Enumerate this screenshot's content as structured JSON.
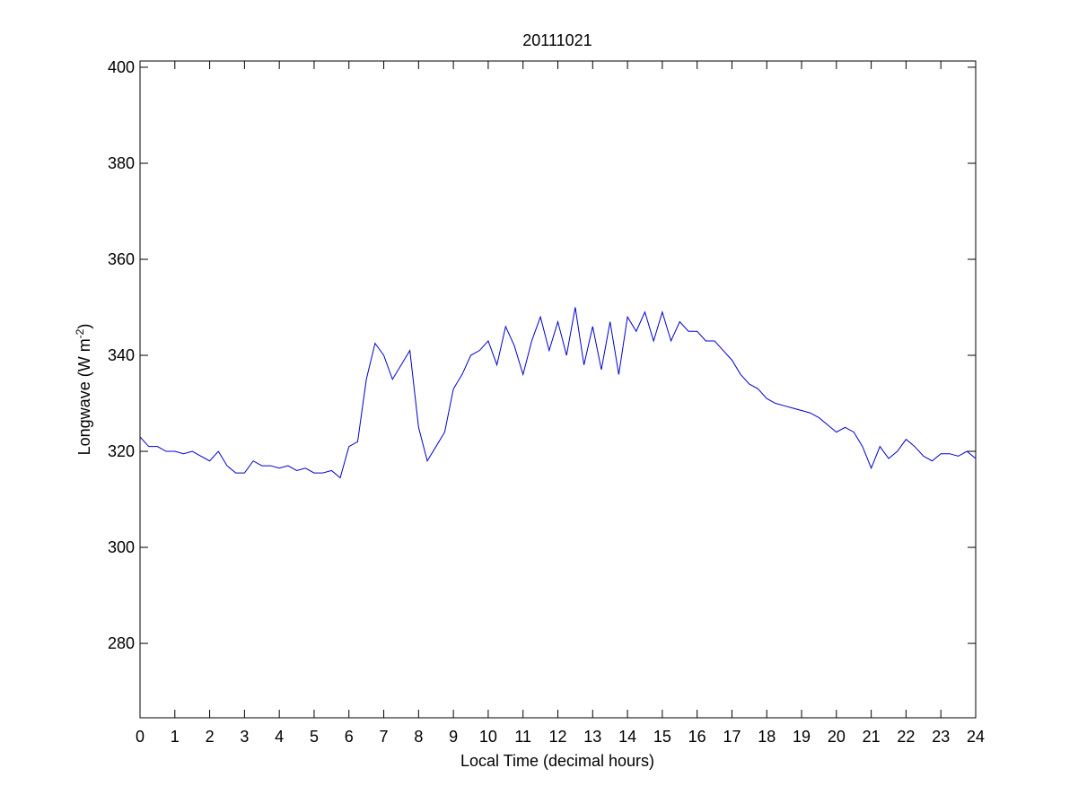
{
  "chart_data": {
    "type": "line",
    "title": "20111021",
    "x_label": "Local Time (decimal hours)",
    "y_label": {
      "text": "Longwave (W m",
      "superscript": "-2",
      "suffix": ")"
    },
    "x": [
      0,
      0.25,
      0.5,
      0.75,
      1,
      1.25,
      1.5,
      1.75,
      2,
      2.25,
      2.5,
      2.75,
      3,
      3.25,
      3.5,
      3.75,
      4,
      4.25,
      4.5,
      4.75,
      5,
      5.25,
      5.5,
      5.75,
      6,
      6.25,
      6.5,
      6.75,
      7,
      7.25,
      7.5,
      7.75,
      8,
      8.25,
      8.5,
      8.75,
      9,
      9.25,
      9.5,
      9.75,
      10,
      10.25,
      10.5,
      10.75,
      11,
      11.25,
      11.5,
      11.75,
      12,
      12.25,
      12.5,
      12.75,
      13,
      13.25,
      13.5,
      13.75,
      14,
      14.25,
      14.5,
      14.75,
      15,
      15.25,
      15.5,
      15.75,
      16,
      16.25,
      16.5,
      16.75,
      17,
      17.25,
      17.5,
      17.75,
      18,
      18.25,
      18.5,
      18.75,
      19,
      19.25,
      19.5,
      19.75,
      20,
      20.25,
      20.5,
      20.75,
      21,
      21.25,
      21.5,
      21.75,
      22,
      22.25,
      22.5,
      22.75,
      23,
      23.25,
      23.5,
      23.75,
      24
    ],
    "series": [
      {
        "name": "Longwave",
        "color": "#0000cc",
        "values": [
          323,
          321,
          321,
          320,
          320,
          319.5,
          320,
          319,
          318,
          320,
          317,
          315.5,
          315.5,
          318,
          317,
          317,
          316.5,
          317,
          316,
          316.5,
          315.5,
          315.5,
          316,
          314.5,
          321,
          322,
          335,
          342.5,
          340,
          335,
          338,
          341,
          325,
          318,
          321,
          324,
          333,
          336,
          340,
          341,
          343,
          338,
          346,
          342,
          336,
          343,
          348,
          341,
          347,
          340,
          350,
          338,
          346,
          337,
          347,
          336,
          348,
          345,
          349,
          343,
          349,
          343,
          347,
          345,
          345,
          343,
          343,
          341,
          339,
          336,
          334,
          333,
          331,
          330,
          329.5,
          329,
          328.5,
          328,
          327,
          325.5,
          324,
          325,
          324,
          321,
          316.5,
          321,
          318.5,
          320,
          322.5,
          321,
          319,
          318,
          319.5,
          319.5,
          319,
          320,
          318.5
        ]
      }
    ],
    "xlim": [
      0,
      24
    ],
    "xticks": [
      0,
      1,
      2,
      3,
      4,
      5,
      6,
      7,
      8,
      9,
      10,
      11,
      12,
      13,
      14,
      15,
      16,
      17,
      18,
      19,
      20,
      21,
      22,
      23,
      24
    ],
    "ylim": [
      264.5,
      401.3
    ],
    "yticks": [
      280,
      300,
      320,
      340,
      360,
      380,
      400
    ]
  }
}
